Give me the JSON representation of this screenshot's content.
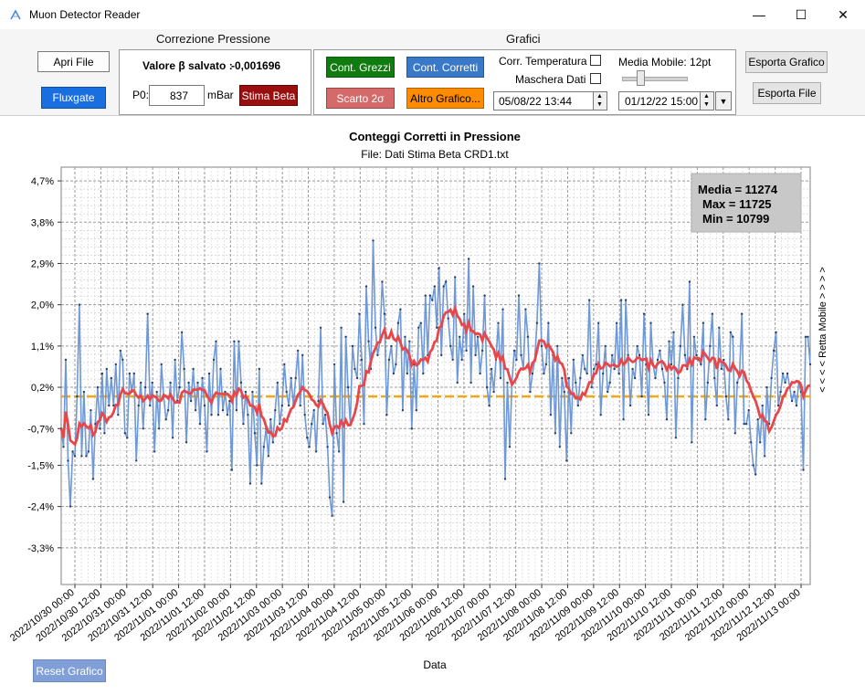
{
  "window": {
    "title": "Muon Detector Reader",
    "minimize": "—",
    "maximize": "☐",
    "close": "✕"
  },
  "toolbar": {
    "open_file": "Apri File",
    "fluxgate": "Fluxgate",
    "pressure": {
      "title": "Correzione Pressione",
      "beta_label": "Valore β salvato :",
      "beta_value": "-0,001696",
      "p0_label": "P0:",
      "p0_value": "837",
      "unit": "mBar",
      "estimate_beta": "Stima Beta"
    },
    "charts": {
      "title": "Grafici",
      "raw_counts": "Cont. Grezzi",
      "corrected_counts": "Cont. Corretti",
      "sigma_reject": "Scarto 2σ",
      "other_chart": "Altro Grafico...",
      "temp_corr": "Corr. Temperatura",
      "data_mask": "Maschera Dati",
      "moving_avg": "Media Mobile: 12pt",
      "date_from": "05/08/22 13:44",
      "date_to": "01/12/22 15:00"
    },
    "export_chart": "Esporta Grafico",
    "export_file": "Esporta File"
  },
  "reset_chart": "Reset Grafico",
  "colors": {
    "btn_green": "#107c10",
    "btn_blue": "#3a78c8",
    "btn_red_light": "#d46a6a",
    "btn_orange": "#ff8c00",
    "btn_darkred": "#9a0e0e",
    "btn_fluxgate": "#1a6fe0",
    "raw_series": "#6f98d6",
    "moving_avg": "#e8474a",
    "mean_line": "#f2a81b"
  },
  "chart_data": {
    "type": "line",
    "title": "Conteggi Corretti in Pressione",
    "subtitle": "File: Dati Stima Beta CRD1.txt",
    "xlabel": "Data",
    "right_label": "< < < < Retta Mobile > > > >",
    "y_ticks": [
      "4,7%",
      "3,8%",
      "2,9%",
      "2,0%",
      "1,1%",
      "0,2%",
      "-0,7%",
      "-1,5%",
      "-2,4%",
      "-3,3%"
    ],
    "y_tick_values": [
      4.7,
      3.8,
      2.9,
      2.0,
      1.1,
      0.2,
      -0.7,
      -1.5,
      -2.4,
      -3.3
    ],
    "ylim": [
      -4.1,
      5.0
    ],
    "x_ticks": [
      "2022/10/30 00:00",
      "2022/10/30 12:00",
      "2022/10/31 00:00",
      "2022/10/31 12:00",
      "2022/11/01 00:00",
      "2022/11/01 12:00",
      "2022/11/02 00:00",
      "2022/11/02 12:00",
      "2022/11/03 00:00",
      "2022/11/03 12:00",
      "2022/11/04 00:00",
      "2022/11/04 12:00",
      "2022/11/05 00:00",
      "2022/11/05 12:00",
      "2022/11/06 00:00",
      "2022/11/06 12:00",
      "2022/11/07 00:00",
      "2022/11/07 12:00",
      "2022/11/08 00:00",
      "2022/11/08 12:00",
      "2022/11/09 00:00",
      "2022/11/09 12:00",
      "2022/11/10 00:00",
      "2022/11/10 12:00",
      "2022/11/11 00:00",
      "2022/11/11 12:00",
      "2022/11/12 00:00",
      "2022/11/12 12:00",
      "2022/11/13 00:00"
    ],
    "mean_line_value": 0.0,
    "stats": {
      "mean": "Media = 11274",
      "max": "Max = 11725",
      "min": "Min = 10799"
    },
    "series": [
      {
        "name": "",
        "values": [
          -0.7,
          -1.1,
          0.8,
          -1.4,
          -2.4,
          -1.2,
          -1.3,
          0.0,
          2.0,
          -1.3,
          0.1,
          -1.3,
          -1.2,
          -0.3,
          -1.8,
          -0.6,
          0.2,
          -0.7,
          0.5,
          -0.8,
          0.6,
          -0.2,
          0.4,
          -0.2,
          0.7,
          -0.4,
          1.0,
          0.8,
          -0.8,
          -0.9,
          0.5,
          0.1,
          0.5,
          -1.4,
          -0.2,
          0.3,
          -0.7,
          0.2,
          1.8,
          -0.2,
          0.3,
          -1.2,
          0.1,
          -0.7,
          0.7,
          0.0,
          -0.5,
          -0.3,
          0.3,
          -0.9,
          0.8,
          -0.1,
          0.2,
          1.4,
          0.6,
          -1.0,
          0.3,
          -0.1,
          0.6,
          -0.3,
          0.3,
          -0.6,
          0.4,
          -0.2,
          -1.2,
          0.5,
          -0.4,
          0.8,
          1.2,
          -0.4,
          0.6,
          -0.3,
          0.1,
          -0.4,
          -0.1,
          -1.6,
          1.2,
          -0.3,
          1.2,
          0.3,
          -0.6,
          0.1,
          -0.4,
          -1.9,
          0.1,
          -0.8,
          -1.5,
          0.6,
          -1.9,
          -1.1,
          -0.7,
          -1.3,
          -0.5,
          -1.0,
          -0.3,
          0.3,
          -0.6,
          -0.2,
          0.7,
          0.1,
          -0.2,
          0.4,
          -0.2,
          0.4,
          1.0,
          -0.2,
          0.9,
          -0.4,
          -0.9,
          -1.1,
          -0.6,
          -0.3,
          -1.2,
          -0.1,
          1.5,
          -0.6,
          -0.4,
          -1.1,
          -2.2,
          -2.6,
          0.7,
          -0.8,
          -1.2,
          1.5,
          -2.3,
          1.3,
          0.2,
          -0.6,
          1.1,
          0.6,
          0.4,
          1.8,
          0.8,
          -0.6,
          2.4,
          1.2,
          0.6,
          3.4,
          1.5,
          0.9,
          1.2,
          2.5,
          1.8,
          -0.4,
          0.8,
          1.1,
          0.5,
          0.7,
          1.6,
          1.9,
          -0.3,
          1.3,
          0.5,
          1.2,
          -0.7,
          0.7,
          -0.3,
          1.5,
          1.6,
          0.5,
          2.2,
          0.9,
          2.2,
          2.1,
          2.4,
          1.5,
          2.8,
          0.9,
          2.4,
          2.5,
          1.7,
          1.1,
          0.8,
          2.6,
          0.3,
          1.3,
          0.8,
          1.8,
          1.0,
          3.0,
          0.3,
          2.4,
          0.9,
          1.3,
          0.5,
          1.0,
          2.2,
          0.2,
          -0.2,
          0.6,
          0.1,
          0.8,
          1.6,
          0.4,
          1.9,
          -1.8,
          0.3,
          -1.1,
          0.3,
          1.0,
          0.8,
          2.2,
          0.9,
          0.6,
          1.9,
          1.3,
          0.1,
          0.5,
          0.8,
          1.6,
          2.9,
          1.1,
          0.5,
          0.7,
          1.6,
          -0.4,
          0.9,
          -0.8,
          1.1,
          -1.1,
          0.4,
          0.1,
          -1.4,
          0.4,
          -0.8,
          0.8,
          0.3,
          -0.2,
          0.4,
          0.9,
          0.6,
          0.5,
          2.1,
          0.2,
          0.6,
          0.7,
          1.6,
          -0.4,
          0.5,
          1.1,
          0.1,
          0.3,
          0.9,
          0.6,
          1.6,
          0.5,
          2.1,
          -0.5,
          2.1,
          0.9,
          -0.2,
          0.6,
          0.4,
          1.1,
          0.9,
          0.0,
          1.8,
          0.7,
          -0.4,
          1.6,
          0.7,
          0.4,
          0.8,
          1.0,
          0.6,
          0.3,
          -0.5,
          1.2,
          0.7,
          1.4,
          -0.9,
          0.4,
          1.1,
          2.0,
          0.9,
          0.6,
          2.5,
          -1.0,
          1.3,
          0.9,
          0.8,
          0.7,
          1.6,
          -0.5,
          0.3,
          1.1,
          1.8,
          0.4,
          -0.2,
          1.5,
          0.6,
          0.8,
          0.0,
          -0.5,
          1.4,
          1.3,
          -0.8,
          0.3,
          0.5,
          1.8,
          -0.6,
          -0.6,
          -0.3,
          -1.0,
          -1.5,
          -1.7,
          -0.5,
          -1.0,
          -0.2,
          -1.3,
          0.2,
          -0.6,
          0.4,
          1.0,
          1.4,
          -0.2,
          0.1,
          0.5,
          0.3,
          0.5,
          0.2,
          -0.1,
          0.1,
          -0.2,
          0.3,
          0.1,
          -1.6,
          1.3,
          1.3,
          0.7
        ]
      }
    ]
  }
}
